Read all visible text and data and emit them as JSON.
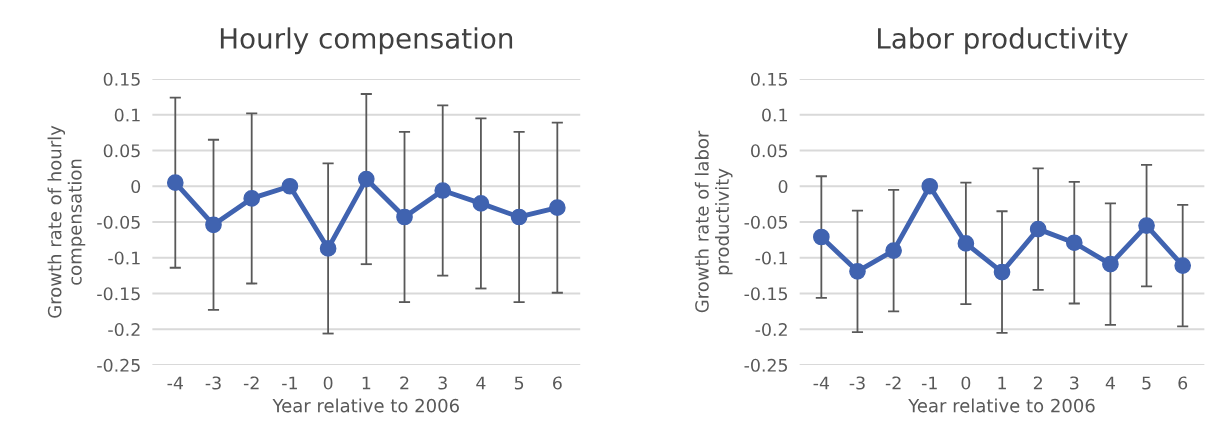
{
  "chart_data": [
    {
      "type": "line",
      "title": "Hourly compensation",
      "xlabel": "Year relative to 2006",
      "ylabel": "Growth rate of hourly\ncompensation",
      "categories": [
        "-4",
        "-3",
        "-2",
        "-1",
        "0",
        "1",
        "2",
        "3",
        "4",
        "5",
        "6"
      ],
      "series": [
        {
          "color": "#4063b0",
          "values": [
            0.005,
            -0.054,
            -0.017,
            0,
            -0.087,
            0.01,
            -0.043,
            -0.006,
            -0.024,
            -0.043,
            -0.03
          ],
          "errors": [
            0.119,
            0.119,
            0.119,
            null,
            0.119,
            0.119,
            0.119,
            0.119,
            0.119,
            0.119,
            0.119
          ]
        }
      ],
      "ylim": [
        -0.25,
        0.15
      ],
      "yticks": [
        -0.25,
        -0.2,
        -0.15,
        -0.1,
        -0.05,
        0,
        0.05,
        0.1,
        0.15
      ],
      "grid": "y",
      "marker": "circle",
      "line_style": "solid",
      "legend": false
    },
    {
      "type": "line",
      "title": "Labor productivity",
      "xlabel": "Year relative to 2006",
      "ylabel": "Growth rate of labor\nproductivity",
      "categories": [
        "-4",
        "-3",
        "-2",
        "-1",
        "0",
        "1",
        "2",
        "3",
        "4",
        "5",
        "6"
      ],
      "series": [
        {
          "color": "#4063b0",
          "values": [
            -0.071,
            -0.119,
            -0.09,
            0,
            -0.08,
            -0.12,
            -0.06,
            -0.079,
            -0.109,
            -0.055,
            -0.111
          ],
          "errors": [
            0.085,
            0.085,
            0.085,
            null,
            0.085,
            0.085,
            0.085,
            0.085,
            0.085,
            0.085,
            0.085
          ]
        }
      ],
      "ylim": [
        -0.25,
        0.15
      ],
      "yticks": [
        -0.25,
        -0.2,
        -0.15,
        -0.1,
        -0.05,
        0,
        0.05,
        0.1,
        0.15
      ],
      "grid": "y",
      "marker": "circle",
      "line_style": "solid",
      "legend": false
    }
  ]
}
